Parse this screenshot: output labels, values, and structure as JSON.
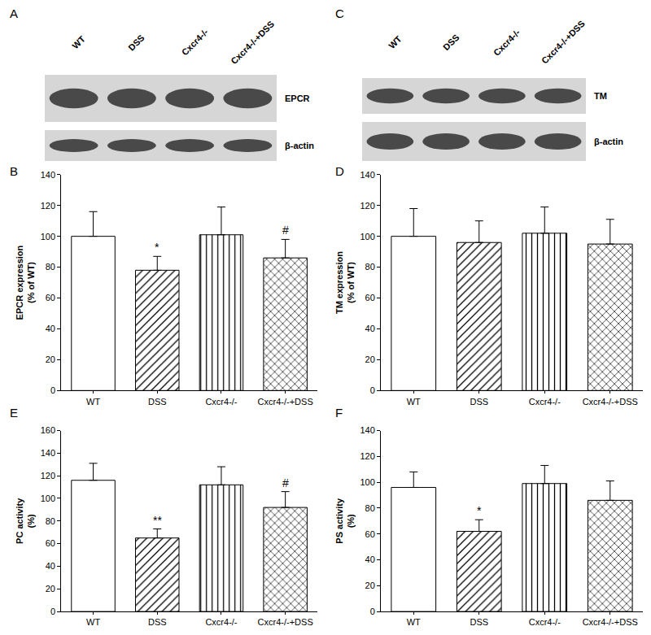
{
  "blots": [
    {
      "panel": "A",
      "lanes": [
        "WT",
        "DSS",
        "Cxcr4-/-",
        "Cxcr4-/-+DSS"
      ],
      "rows": [
        "EPCR",
        "β-actin"
      ]
    },
    {
      "panel": "C",
      "lanes": [
        "WT",
        "DSS",
        "Cxcr4-/-",
        "Cxcr4-/-+DSS"
      ],
      "rows": [
        "TM",
        "β-actin"
      ]
    }
  ],
  "chart_data": [
    {
      "panel": "B",
      "type": "bar",
      "categories": [
        "WT",
        "DSS",
        "Cxcr4-/-",
        "Cxcr4-/-+DSS"
      ],
      "values": [
        100,
        78,
        101,
        86
      ],
      "errors": [
        16,
        9,
        18,
        12
      ],
      "marks": [
        null,
        "*",
        null,
        "#"
      ],
      "ylabel": [
        "EPCR expression",
        "(% of WT)"
      ],
      "ylim": [
        0,
        140
      ],
      "yticks": [
        0,
        20,
        40,
        60,
        80,
        100,
        120,
        140
      ],
      "color": "#ffffff"
    },
    {
      "panel": "D",
      "type": "bar",
      "categories": [
        "WT",
        "DSS",
        "Cxcr4-/-",
        "Cxcr4-/-+DSS"
      ],
      "values": [
        100,
        96,
        102,
        95
      ],
      "errors": [
        18,
        14,
        17,
        16
      ],
      "marks": [
        null,
        null,
        null,
        null
      ],
      "ylabel": [
        "TM expression",
        "(% of WT)"
      ],
      "ylim": [
        0,
        140
      ],
      "yticks": [
        0,
        20,
        40,
        60,
        80,
        100,
        120,
        140
      ],
      "color": "#ffffff"
    },
    {
      "panel": "E",
      "type": "bar",
      "categories": [
        "WT",
        "DSS",
        "Cxcr4-/-",
        "Cxcr4-/-+DSS"
      ],
      "values": [
        116,
        65,
        112,
        92
      ],
      "errors": [
        15,
        8,
        16,
        14
      ],
      "marks": [
        null,
        "**",
        null,
        "#"
      ],
      "ylabel": [
        "PC activity",
        "(%)"
      ],
      "ylim": [
        0,
        160
      ],
      "yticks": [
        0,
        20,
        40,
        60,
        80,
        100,
        120,
        140,
        160
      ],
      "color": "#ffffff"
    },
    {
      "panel": "F",
      "type": "bar",
      "categories": [
        "WT",
        "DSS",
        "Cxcr4-/-",
        "Cxcr4-/-+DSS"
      ],
      "values": [
        96,
        62,
        99,
        86
      ],
      "errors": [
        12,
        9,
        14,
        15
      ],
      "marks": [
        null,
        "*",
        null,
        null
      ],
      "ylabel": [
        "PS activity",
        "(%)"
      ],
      "ylim": [
        0,
        140
      ],
      "yticks": [
        0,
        20,
        40,
        60,
        80,
        100,
        120,
        140
      ],
      "color": "#ffffff"
    }
  ]
}
